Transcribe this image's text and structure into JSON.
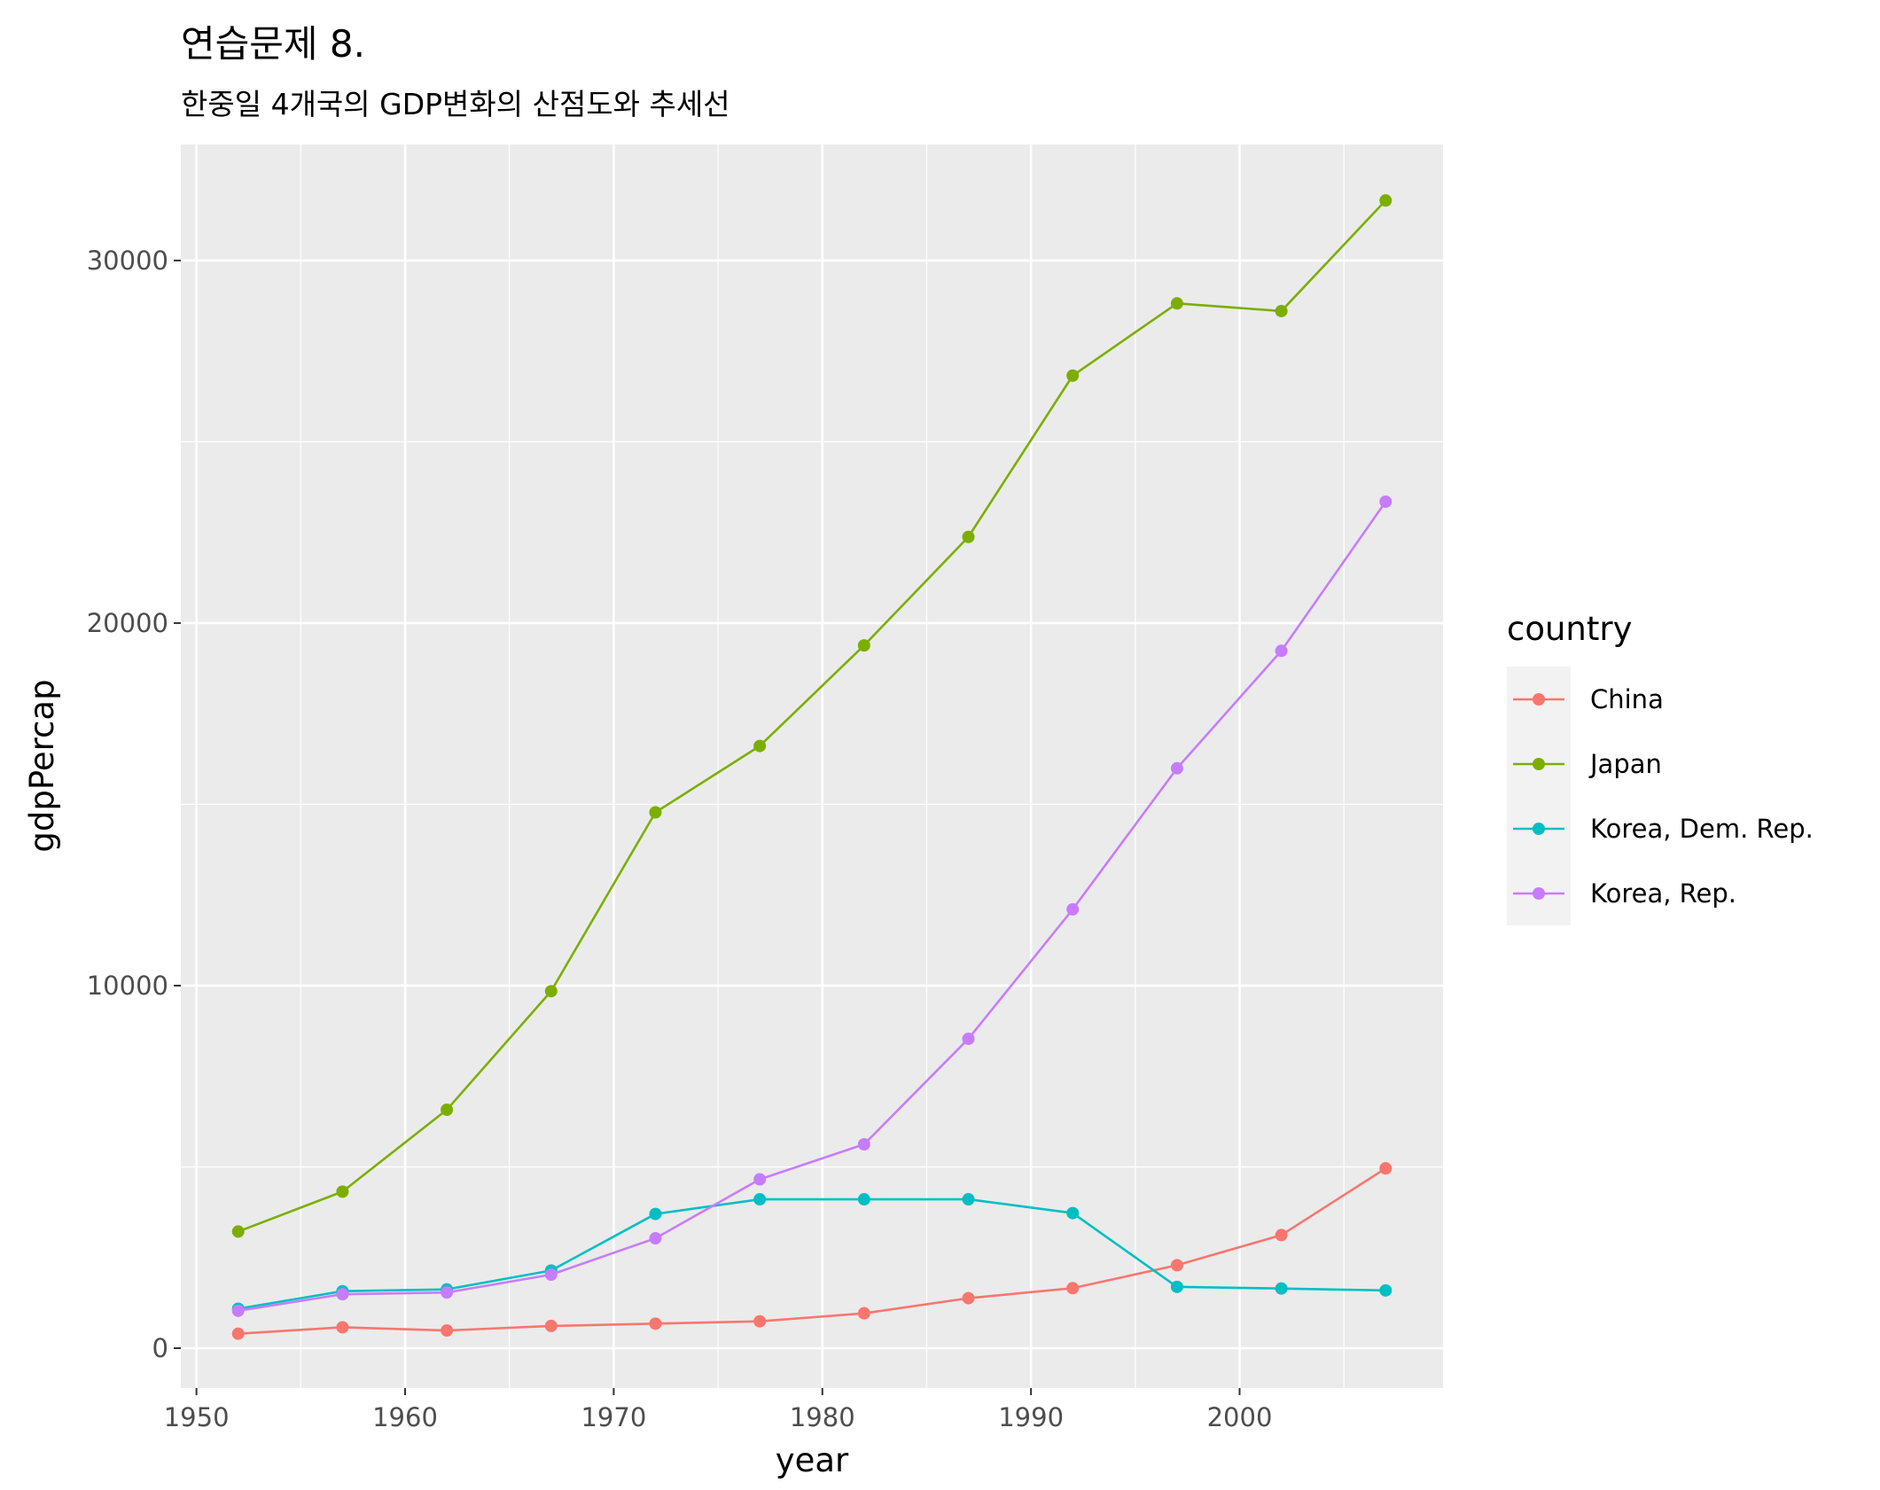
{
  "chart_data": {
    "type": "line",
    "title": "연습문제 8.",
    "subtitle": "한중일 4개국의 GDP변화의 산점도와 추세선",
    "xlabel": "year",
    "ylabel": "gdpPercap",
    "xlim": [
      1949.25,
      2009.75
    ],
    "ylim": [
      -1100,
      33200
    ],
    "x_ticks": [
      1950,
      1960,
      1970,
      1980,
      1990,
      2000
    ],
    "y_ticks": [
      0,
      10000,
      20000,
      30000
    ],
    "grid": true,
    "legend": {
      "title": "country",
      "position": "right"
    },
    "x": [
      1952,
      1957,
      1962,
      1967,
      1972,
      1977,
      1982,
      1987,
      1992,
      1997,
      2002,
      2007
    ],
    "series": [
      {
        "name": "China",
        "color": "#F8766D",
        "values": [
          400,
          576,
          488,
          613,
          677,
          741,
          962,
          1379,
          1656,
          2289,
          3119,
          4959
        ]
      },
      {
        "name": "Japan",
        "color": "#7CAE00",
        "values": [
          3217,
          4318,
          6577,
          9847,
          14779,
          16610,
          19384,
          22376,
          26825,
          28817,
          28605,
          31656
        ]
      },
      {
        "name": "Korea, Dem. Rep.",
        "color": "#00BFC4",
        "values": [
          1088,
          1572,
          1622,
          2143,
          3702,
          4106,
          4107,
          4106,
          3726,
          1691,
          1646,
          1593
        ]
      },
      {
        "name": "Korea, Rep.",
        "color": "#C77CFF",
        "values": [
          1031,
          1488,
          1536,
          2029,
          3031,
          4657,
          5623,
          8533,
          12104,
          15994,
          19234,
          23348
        ]
      }
    ]
  }
}
